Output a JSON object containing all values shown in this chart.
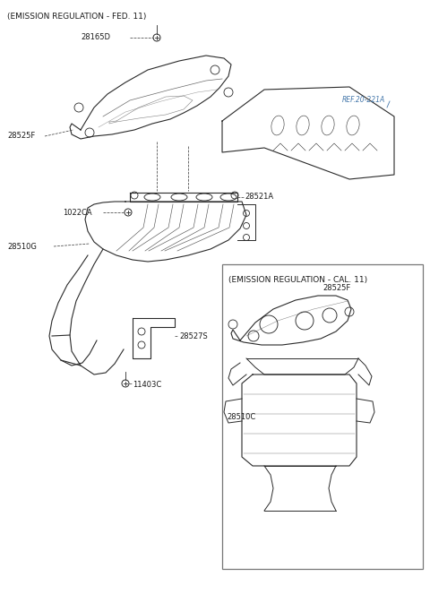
{
  "bg_color": "#ffffff",
  "figsize": [
    4.8,
    6.63
  ],
  "dpi": 100,
  "fed_header": "(EMISSION REGULATION - FED. 11)",
  "cal_header": "(EMISSION REGULATION - CAL. 11)",
  "ref_label": "REF.20-221A",
  "line_color": "#2a2a2a",
  "ref_color": "#4477aa",
  "text_color": "#1a1a1a",
  "label_color": "#222222",
  "fontsize_header": 6.5,
  "fontsize_label": 6.0,
  "lw_part": 0.8,
  "lw_thin": 0.5
}
